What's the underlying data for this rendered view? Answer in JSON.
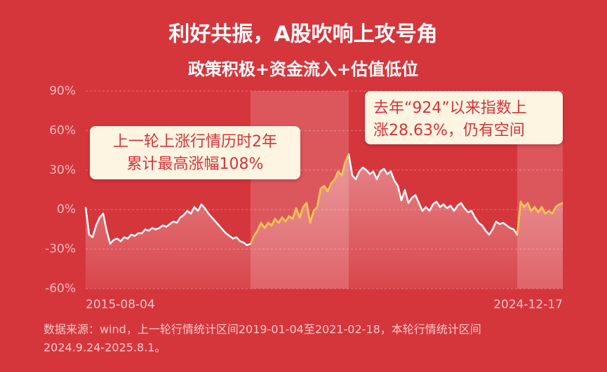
{
  "chart_data": {
    "type": "line",
    "title": "利好共振，A股吹响上攻号角",
    "subtitle": "政策积极+资金流入+估值低位",
    "categories": [
      "2015-08-04",
      null,
      null,
      null,
      null,
      null,
      null,
      null,
      null,
      null,
      null,
      null,
      null,
      null,
      null,
      null,
      null,
      null,
      null,
      null,
      null,
      null,
      null,
      null,
      null,
      null,
      null,
      null,
      null,
      null,
      null,
      null,
      null,
      null,
      null,
      null,
      null,
      null,
      null,
      null,
      null,
      null,
      null,
      null,
      null,
      null,
      null,
      null,
      null,
      null,
      null,
      null,
      null,
      null,
      null,
      null,
      null,
      null,
      null,
      null,
      null,
      null,
      null,
      null,
      null,
      null,
      null,
      null,
      null,
      null,
      null,
      null,
      null,
      null,
      null,
      null,
      null,
      null,
      null,
      null,
      null,
      null,
      null,
      null,
      null,
      null,
      null,
      null,
      null,
      null,
      null,
      null,
      null,
      null,
      null,
      null,
      null,
      null,
      null,
      null,
      null,
      null,
      null,
      null,
      null,
      null,
      null,
      null,
      null,
      null,
      null,
      null,
      null,
      null,
      null,
      null,
      null,
      null,
      null,
      null,
      null,
      null,
      null,
      null,
      null,
      null,
      null,
      null,
      null,
      null,
      null,
      null,
      null,
      null,
      null,
      null,
      "2024-12-17"
    ],
    "series": [
      {
        "color": "#ffffff",
        "values": [
          2,
          -19,
          -21,
          -12,
          -6,
          -3,
          -16,
          -26,
          -23,
          -22,
          -24,
          -21,
          -22,
          -19,
          -20,
          -18,
          -18,
          -15,
          -16,
          -14,
          -15,
          -14,
          -12,
          -13,
          -11,
          -9,
          -10,
          -6,
          -4,
          -1,
          -3,
          2,
          -1,
          4,
          1,
          -3,
          -6,
          -9,
          -12,
          -15,
          -18,
          -20,
          -22,
          -21,
          -24,
          -25,
          -27,
          -26,
          -20,
          -16,
          -10,
          -14,
          -10,
          -12,
          -7,
          -10,
          -6,
          -9,
          -5,
          -7,
          1,
          -6,
          2,
          5,
          -10,
          -1,
          2,
          16,
          18,
          14,
          20,
          23,
          29,
          26,
          36,
          42,
          26,
          23,
          29,
          32,
          30,
          27,
          29,
          23,
          29,
          31,
          27,
          29,
          22,
          18,
          7,
          15,
          5,
          9,
          11,
          5,
          -1,
          2,
          -1,
          4,
          6,
          2,
          4,
          1,
          3,
          -1,
          3,
          5,
          1,
          -2,
          -1,
          -6,
          -10,
          -12,
          -16,
          -19,
          -15,
          -9,
          -11,
          -10,
          -12,
          -14,
          -15,
          -19,
          6,
          2,
          5,
          -1,
          2,
          -2,
          2,
          -3,
          -1,
          -3,
          2,
          4,
          5
        ]
      }
    ],
    "highlights": {
      "color": "#f7c548",
      "ranges": [
        [
          47,
          75
        ],
        [
          123,
          136
        ]
      ]
    },
    "ylim": [
      -60,
      90
    ],
    "yticks": [
      {
        "value": -60,
        "label": "-60%"
      },
      {
        "value": -30,
        "label": "-30%"
      },
      {
        "value": 0,
        "label": "0%"
      },
      {
        "value": 30,
        "label": "30%"
      },
      {
        "value": 60,
        "label": "60%"
      },
      {
        "value": 90,
        "label": "90%"
      }
    ],
    "grid": true,
    "annotations": [
      {
        "lines": [
          "上一轮上涨行情历时2年",
          "累计最高涨幅108%"
        ]
      },
      {
        "lines": [
          "去年“924”以来指数上",
          "涨28.63%，仍有空间"
        ]
      }
    ],
    "source_note": [
      "数据来源：wind，上一轮行情统计区间2019-01-04至2021-02-18，本轮行情统计区间",
      "2024.9.24-2025.8.1。"
    ]
  }
}
